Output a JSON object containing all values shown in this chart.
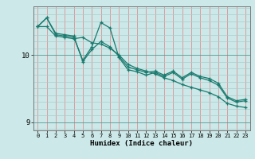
{
  "xlabel": "Humidex (Indice chaleur)",
  "background_color": "#cce8e8",
  "line_color": "#1a7a6e",
  "vgrid_color": "#e09090",
  "hgrid_color": "#aacccc",
  "xlim": [
    -0.5,
    23.5
  ],
  "ylim": [
    8.88,
    10.72
  ],
  "yticks": [
    9,
    10
  ],
  "xticks": [
    0,
    1,
    2,
    3,
    4,
    5,
    6,
    7,
    8,
    9,
    10,
    11,
    12,
    13,
    14,
    15,
    16,
    17,
    18,
    19,
    20,
    21,
    22,
    23
  ],
  "line1_x": [
    0,
    1,
    2,
    3,
    4,
    5,
    6,
    7,
    8,
    9,
    10,
    11,
    12,
    13,
    14,
    15,
    16,
    17,
    18,
    19,
    20,
    21,
    22,
    23
  ],
  "line1_y": [
    10.42,
    10.55,
    10.32,
    10.3,
    10.28,
    9.9,
    10.08,
    10.2,
    10.12,
    9.98,
    9.82,
    9.78,
    9.74,
    9.76,
    9.7,
    9.76,
    9.66,
    9.74,
    9.68,
    9.65,
    9.58,
    9.38,
    9.32,
    9.34
  ],
  "line2_x": [
    0,
    1,
    2,
    3,
    4,
    5,
    6,
    7,
    8,
    9,
    10,
    11,
    12,
    13,
    14,
    15,
    16,
    17,
    18,
    19,
    20,
    21,
    22,
    23
  ],
  "line2_y": [
    10.42,
    10.55,
    10.3,
    10.28,
    10.26,
    9.92,
    10.12,
    10.48,
    10.4,
    9.96,
    9.78,
    9.75,
    9.7,
    9.74,
    9.68,
    9.74,
    9.64,
    9.72,
    9.66,
    9.62,
    9.55,
    9.36,
    9.3,
    9.32
  ],
  "line3_x": [
    0,
    1,
    2,
    3,
    4,
    5,
    6,
    7,
    8,
    9,
    10,
    11,
    12,
    13,
    14,
    15,
    16,
    17,
    18,
    19,
    20,
    21,
    22,
    23
  ],
  "line3_y": [
    10.42,
    10.42,
    10.28,
    10.26,
    10.24,
    10.26,
    10.18,
    10.16,
    10.1,
    10.0,
    9.86,
    9.8,
    9.76,
    9.72,
    9.66,
    9.62,
    9.56,
    9.52,
    9.48,
    9.44,
    9.38,
    9.28,
    9.24,
    9.22
  ]
}
